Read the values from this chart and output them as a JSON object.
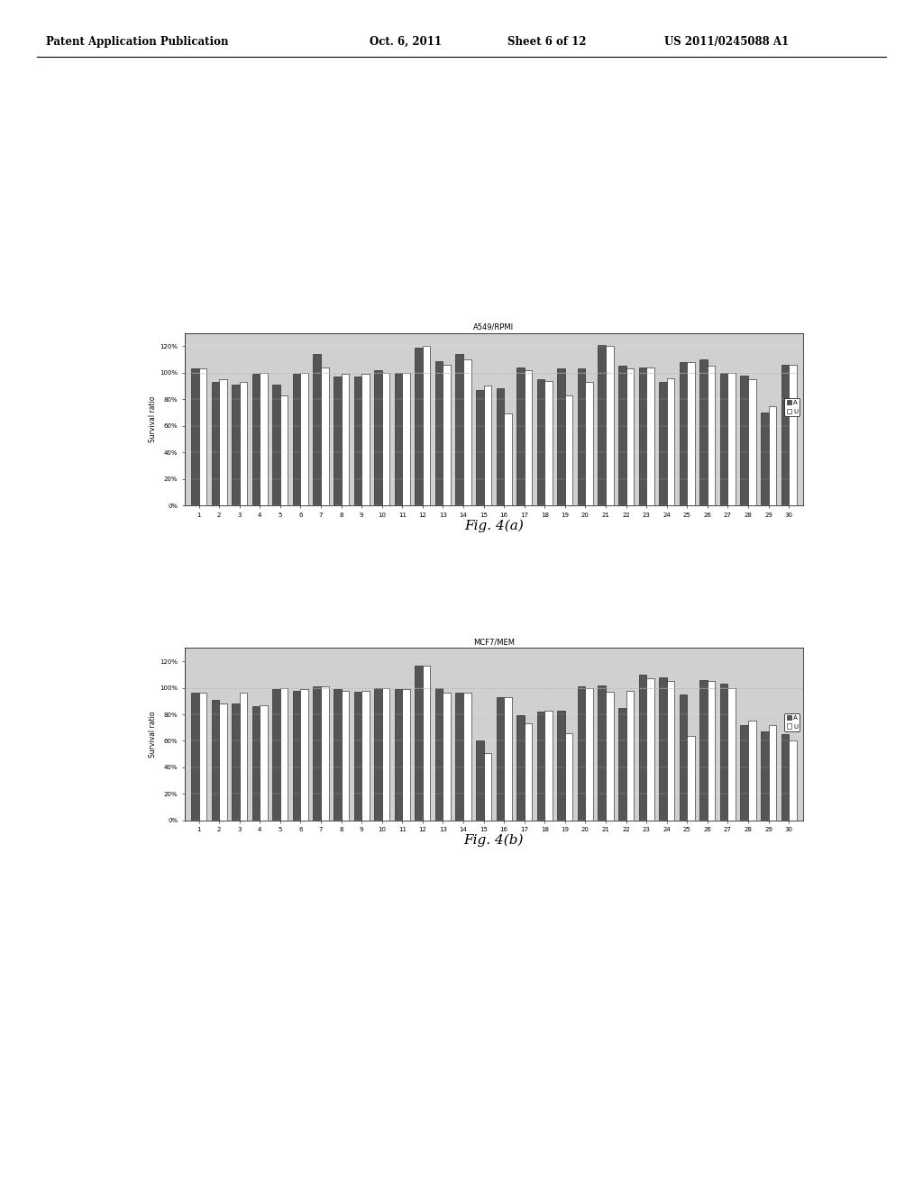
{
  "fig4a_title": "A549/RPMI",
  "fig4b_title": "MCF7/MEM",
  "categories": [
    1,
    2,
    3,
    4,
    5,
    6,
    7,
    8,
    9,
    10,
    11,
    12,
    13,
    14,
    15,
    16,
    17,
    18,
    19,
    20,
    21,
    22,
    23,
    24,
    25,
    26,
    27,
    28,
    29,
    30
  ],
  "ylabel": "Survival ratio",
  "caption_a": "Fig. 4(a)",
  "caption_b": "Fig. 4(b)",
  "legend_A": "A",
  "legend_U": "U",
  "ylim": [
    0,
    1.3
  ],
  "yticks": [
    0,
    0.2,
    0.4,
    0.6,
    0.8,
    1.0,
    1.2
  ],
  "ytick_labels": [
    "0%",
    "20%",
    "40%",
    "60%",
    "80%",
    "100%",
    "120%"
  ],
  "bg_color": "#d0d0d0",
  "bar_color_A": "#555555",
  "bar_color_U": "#ffffff",
  "bar_edge_color": "#111111",
  "fig4a_A": [
    1.03,
    0.93,
    0.91,
    0.99,
    0.91,
    0.99,
    1.14,
    0.97,
    0.97,
    1.02,
    1.0,
    1.19,
    1.09,
    1.14,
    0.87,
    0.88,
    1.04,
    0.95,
    1.03,
    1.03,
    1.21,
    1.05,
    1.04,
    0.93,
    1.08,
    1.1,
    1.0,
    0.98,
    0.7,
    1.06
  ],
  "fig4a_U": [
    1.03,
    0.95,
    0.93,
    1.0,
    0.83,
    1.0,
    1.04,
    0.99,
    0.99,
    1.0,
    1.0,
    1.2,
    1.06,
    1.1,
    0.9,
    0.69,
    1.02,
    0.94,
    0.83,
    0.93,
    1.2,
    1.03,
    1.04,
    0.96,
    1.08,
    1.05,
    1.0,
    0.95,
    0.75,
    1.06
  ],
  "fig4b_A": [
    0.96,
    0.91,
    0.88,
    0.86,
    0.99,
    0.98,
    1.01,
    0.99,
    0.97,
    1.0,
    0.99,
    1.17,
    1.0,
    0.96,
    0.6,
    0.93,
    0.79,
    0.82,
    0.83,
    1.01,
    1.02,
    0.85,
    1.1,
    1.08,
    0.95,
    1.06,
    1.03,
    0.72,
    0.67,
    0.65
  ],
  "fig4b_U": [
    0.96,
    0.88,
    0.96,
    0.87,
    1.0,
    0.99,
    1.01,
    0.98,
    0.98,
    1.0,
    0.99,
    1.17,
    0.96,
    0.96,
    0.51,
    0.93,
    0.73,
    0.83,
    0.66,
    1.0,
    0.97,
    0.98,
    1.07,
    1.05,
    0.64,
    1.05,
    1.0,
    0.75,
    0.72,
    0.6
  ],
  "header_left": "Patent Application Publication",
  "header_mid": "Oct. 6, 2011",
  "header_mid2": "Sheet 6 of 12",
  "header_right": "US 2011/0245088 A1"
}
